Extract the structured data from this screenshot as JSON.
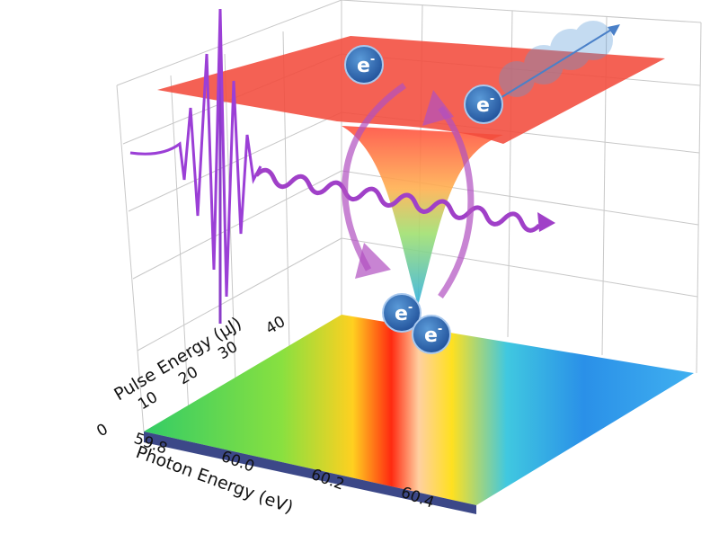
{
  "axes": {
    "pulse_energy": {
      "label": "Pulse Energy (μJ)",
      "ticks": [
        "0",
        "10",
        "20",
        "30",
        "40"
      ]
    },
    "photon_energy": {
      "label": "Photon Energy (eV)",
      "ticks": [
        "59.8",
        "60.0",
        "60.2",
        "60.4"
      ]
    }
  },
  "electrons": [
    {
      "symbol": "e",
      "charge": "-"
    },
    {
      "symbol": "e",
      "charge": "-"
    },
    {
      "symbol": "e",
      "charge": "-"
    },
    {
      "symbol": "e",
      "charge": "-"
    }
  ]
}
